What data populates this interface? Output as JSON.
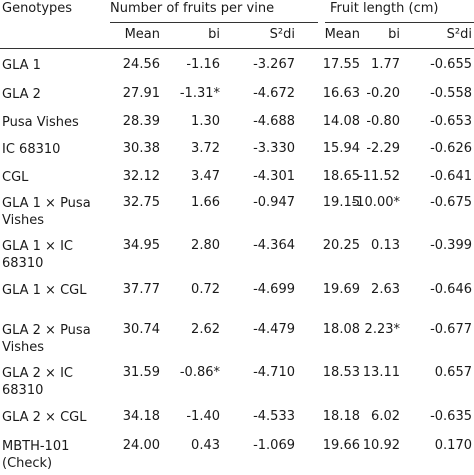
{
  "table": {
    "headers": {
      "genotypes": "Genotypes",
      "group1": "Number of fruits per vine",
      "group2": "Fruit length (cm)",
      "sub": [
        "Mean",
        "bi",
        "S²di",
        "Mean",
        "bi",
        "S²di"
      ]
    },
    "rows": [
      {
        "genotype": "GLA 1",
        "values": [
          "24.56",
          "-1.16",
          "-3.267",
          "17.55",
          "1.77",
          "-0.655"
        ]
      },
      {
        "genotype": "GLA 2",
        "values": [
          "27.91",
          "-1.31*",
          "-4.672",
          "16.63",
          "-0.20",
          "-0.558"
        ]
      },
      {
        "genotype": "Pusa Vishes",
        "values": [
          "28.39",
          "1.30",
          "-4.688",
          "14.08",
          "-0.80",
          "-0.653"
        ]
      },
      {
        "genotype": "IC 68310",
        "values": [
          "30.38",
          "3.72",
          "-3.330",
          "15.94",
          "-2.29",
          "-0.626"
        ]
      },
      {
        "genotype": "CGL",
        "values": [
          "32.12",
          "3.47",
          "-4.301",
          "18.65",
          "-11.52",
          "-0.641"
        ]
      },
      {
        "genotype": "GLA 1 × Pusa\nVishes",
        "values": [
          "32.75",
          "1.66",
          "-0.947",
          "19.15",
          "-10.00*",
          "-0.675"
        ]
      },
      {
        "genotype": "GLA 1 × IC\n68310",
        "values": [
          "34.95",
          "2.80",
          "-4.364",
          "20.25",
          "0.13",
          "-0.399"
        ]
      },
      {
        "genotype": "GLA 1 × CGL",
        "values": [
          "37.77",
          "0.72",
          "-4.699",
          "19.69",
          "2.63",
          "-0.646"
        ]
      },
      {
        "genotype": "GLA 2 × Pusa\nVishes",
        "values": [
          "30.74",
          "2.62",
          "-4.479",
          "18.08",
          "2.23*",
          "-0.677"
        ]
      },
      {
        "genotype": "GLA 2 × IC\n68310",
        "values": [
          "31.59",
          "-0.86*",
          "-4.710",
          "18.53",
          "13.11",
          "0.657"
        ]
      },
      {
        "genotype": "GLA 2 × CGL",
        "values": [
          "34.18",
          "-1.40",
          "-4.533",
          "18.18",
          "6.02",
          "-0.635"
        ]
      },
      {
        "genotype": "MBTH-101\n(Check)",
        "values": [
          "24.00",
          "0.43",
          "-1.069",
          "19.66",
          "10.92",
          "0.170"
        ]
      }
    ]
  }
}
